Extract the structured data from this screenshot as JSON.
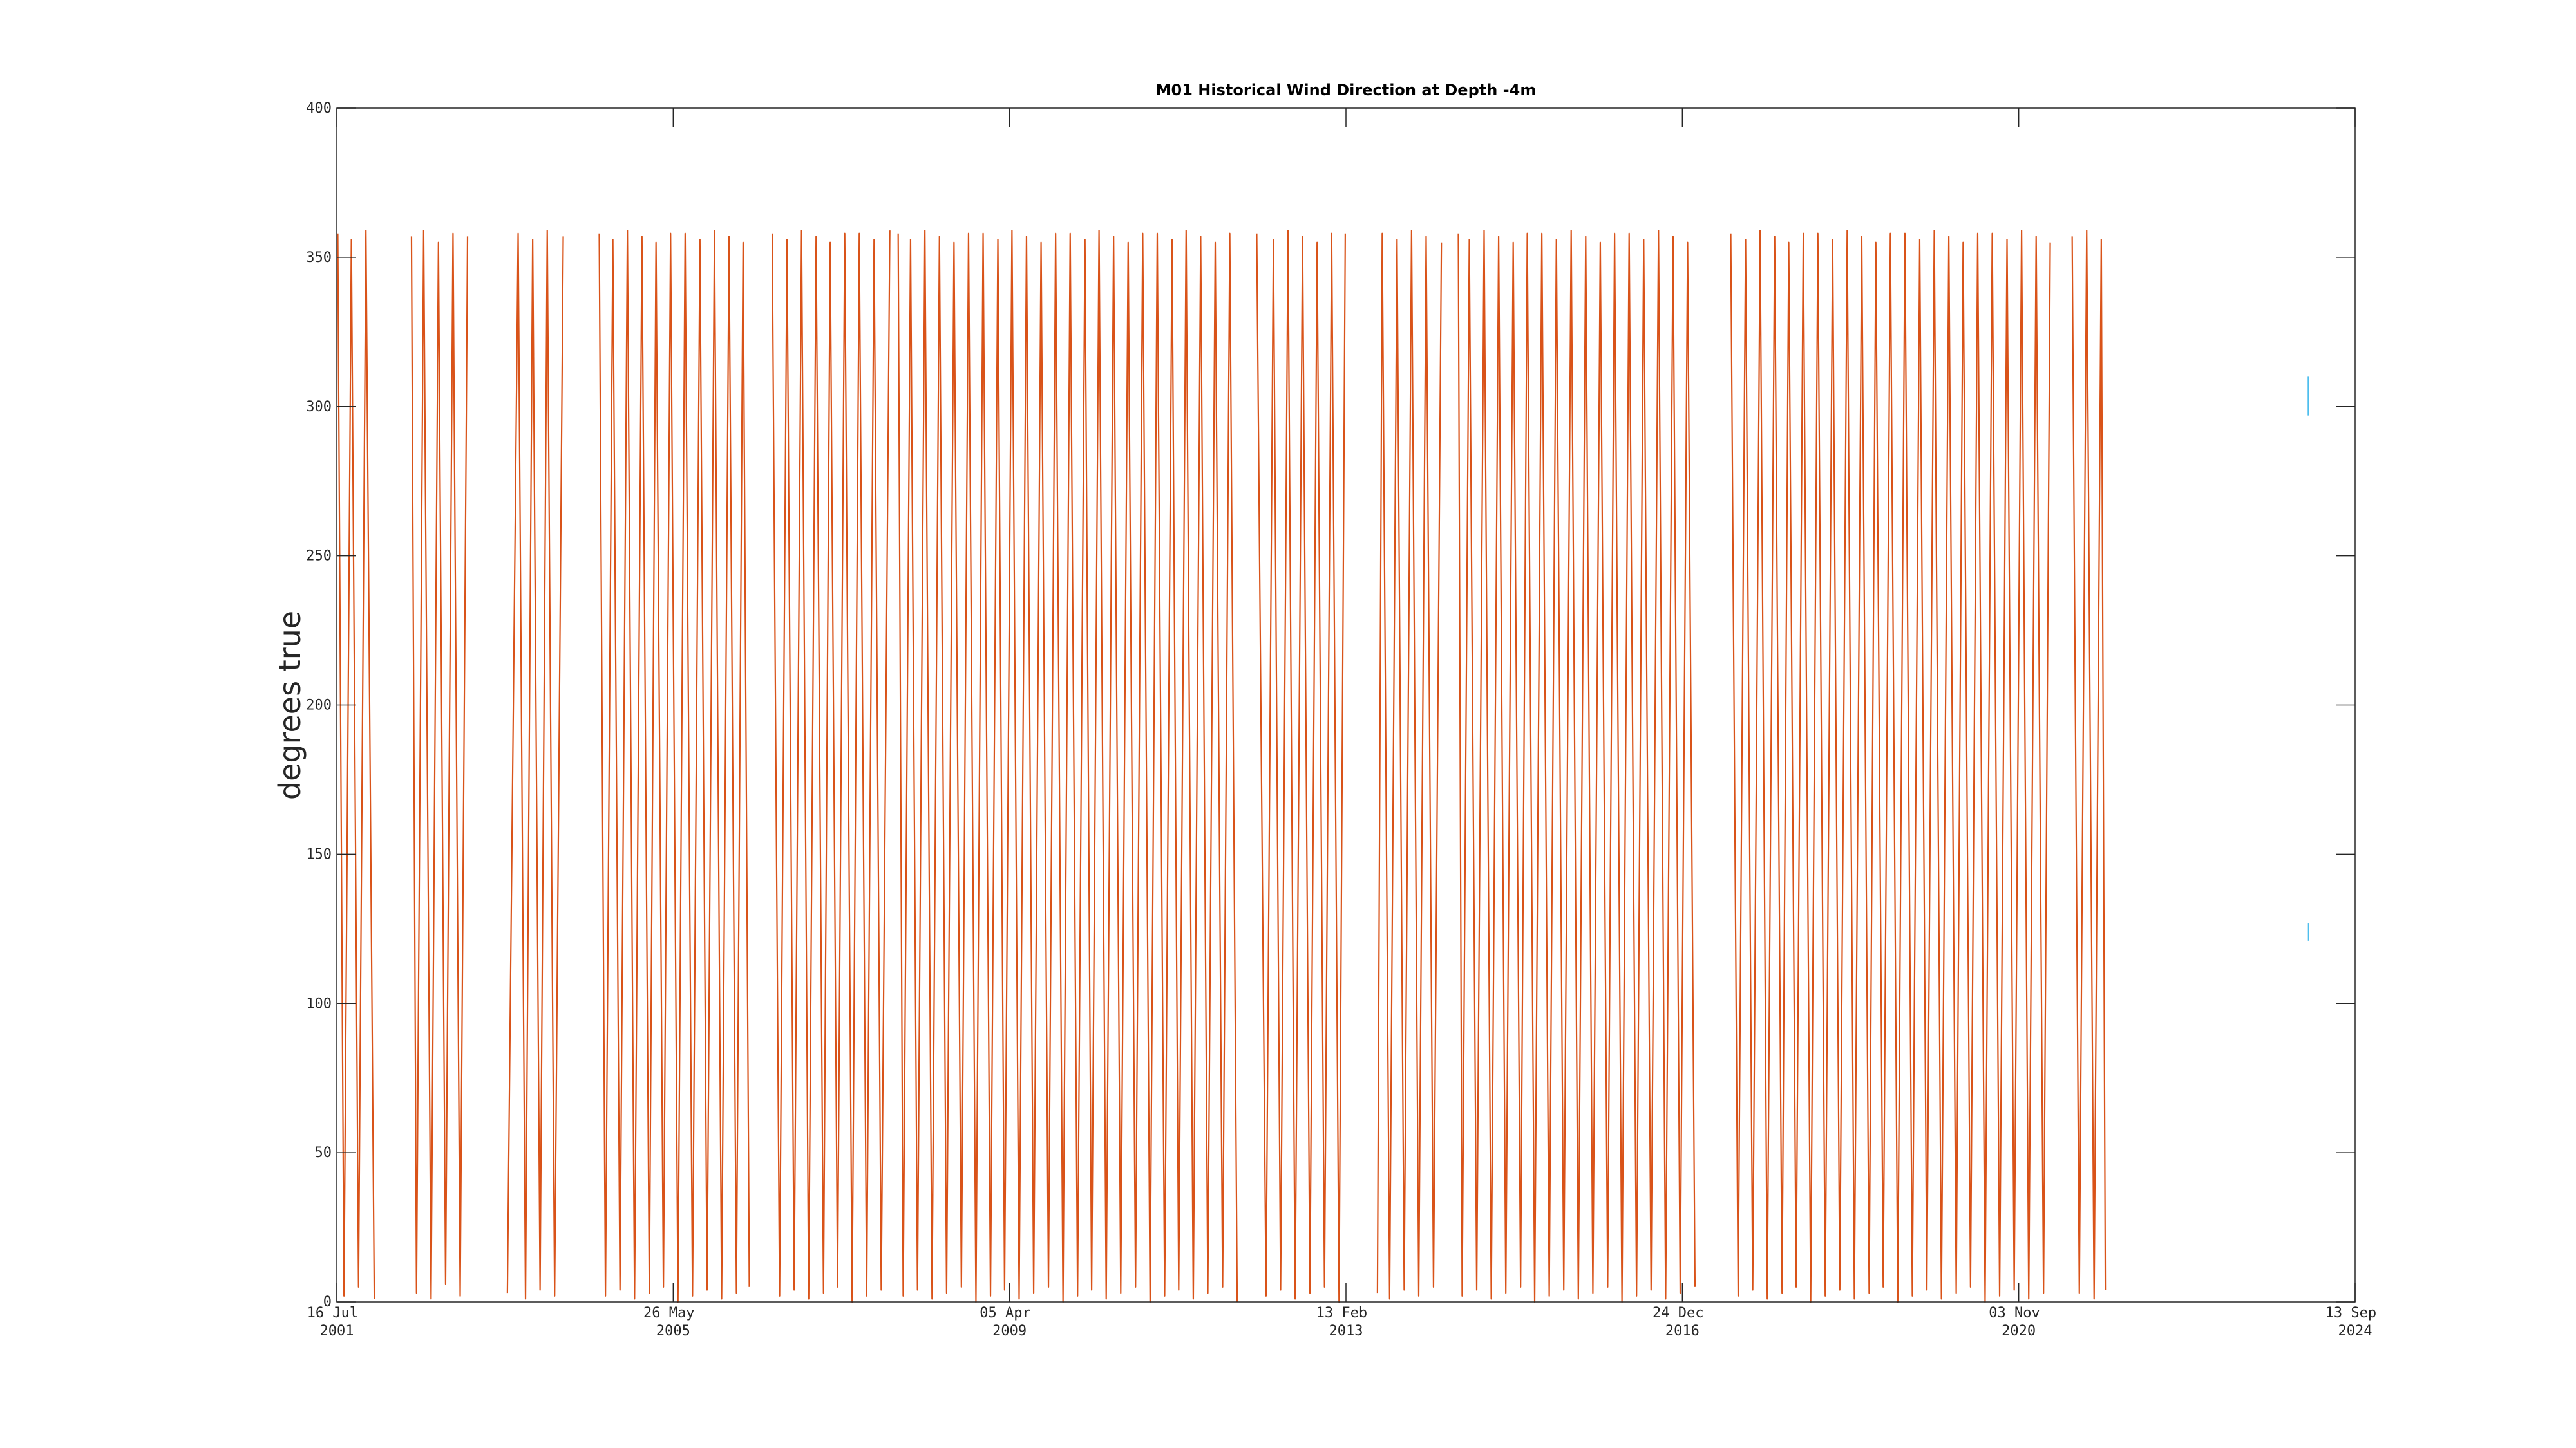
{
  "chart_data": {
    "type": "line",
    "title": "M01 Historical Wind Direction at Depth -4m",
    "y_label": "degrees true",
    "xlim": [
      "2001-07-16",
      "2024-09-13"
    ],
    "xticks": [
      {
        "value": "2001-07-16",
        "label": "16 Jul 2001"
      },
      {
        "value": "2005-05-26",
        "label": "26 May 2005"
      },
      {
        "value": "2009-04-05",
        "label": "05 Apr 2009"
      },
      {
        "value": "2013-02-13",
        "label": "13 Feb 2013"
      },
      {
        "value": "2016-12-24",
        "label": "24 Dec 2016"
      },
      {
        "value": "2020-11-03",
        "label": "03 Nov 2020"
      },
      {
        "value": "2024-09-13",
        "label": "13 Sep 2024"
      }
    ],
    "ylim": [
      0,
      400
    ],
    "yticks": [
      0,
      50,
      100,
      150,
      200,
      250,
      300,
      350,
      400
    ],
    "grid": false,
    "series": [
      {
        "color": "#d95319",
        "x": [
          "2001-07-20",
          "2001-08-15",
          "2001-09-15",
          "2001-10-15",
          "2001-11-15",
          "2001-12-20",
          "2002-03-01",
          "2002-05-25",
          "2002-06-15",
          "2002-07-15",
          "2002-08-15",
          "2002-09-15",
          "2002-10-15",
          "2002-11-15",
          "2002-12-15",
          "2003-01-15",
          "2003-04-01",
          "2003-07-01",
          "2003-08-15",
          "2003-09-15",
          "2003-10-15",
          "2003-11-15",
          "2003-12-15",
          "2004-01-15",
          "2004-02-20",
          "2004-05-01",
          "2004-07-20",
          "2004-08-15",
          "2004-09-15",
          "2004-10-15",
          "2004-11-15",
          "2004-12-15",
          "2005-01-15",
          "2005-02-15",
          "2005-03-15",
          "2005-04-15",
          "2005-05-15",
          "2005-06-15",
          "2005-07-15",
          "2005-08-15",
          "2005-09-15",
          "2005-10-15",
          "2005-11-15",
          "2005-12-15",
          "2006-01-15",
          "2006-02-15",
          "2006-03-15",
          "2006-04-10",
          "2006-05-15",
          "2006-07-15",
          "2006-08-15",
          "2006-09-15",
          "2006-10-15",
          "2006-11-15",
          "2006-12-15",
          "2007-01-15",
          "2007-02-15",
          "2007-03-15",
          "2007-04-15",
          "2007-05-15",
          "2007-06-15",
          "2007-07-15",
          "2007-08-15",
          "2007-09-15",
          "2007-10-15",
          "2007-11-20",
          "2007-12-10",
          "2007-12-25",
          "2008-01-15",
          "2008-02-15",
          "2008-03-15",
          "2008-04-15",
          "2008-05-15",
          "2008-06-15",
          "2008-07-15",
          "2008-08-15",
          "2008-09-15",
          "2008-10-15",
          "2008-11-15",
          "2008-12-15",
          "2009-01-15",
          "2009-02-15",
          "2009-03-15",
          "2009-04-15",
          "2009-05-15",
          "2009-06-15",
          "2009-07-15",
          "2009-08-15",
          "2009-09-15",
          "2009-10-15",
          "2009-11-15",
          "2009-12-15",
          "2010-01-15",
          "2010-02-15",
          "2010-03-15",
          "2010-04-15",
          "2010-05-15",
          "2010-06-15",
          "2010-07-15",
          "2010-08-15",
          "2010-09-15",
          "2010-10-15",
          "2010-11-15",
          "2010-12-15",
          "2011-01-15",
          "2011-02-15",
          "2011-03-15",
          "2011-04-15",
          "2011-05-15",
          "2011-06-15",
          "2011-07-15",
          "2011-08-15",
          "2011-09-15",
          "2011-10-15",
          "2011-11-15",
          "2012-01-01",
          "2012-02-05",
          "2012-03-15",
          "2012-04-15",
          "2012-05-15",
          "2012-06-15",
          "2012-07-15",
          "2012-08-15",
          "2012-09-15",
          "2012-10-15",
          "2012-11-15",
          "2012-12-15",
          "2013-01-15",
          "2013-02-10",
          "2013-04-01",
          "2013-06-25",
          "2013-07-15",
          "2013-08-15",
          "2013-09-15",
          "2013-10-15",
          "2013-11-15",
          "2013-12-15",
          "2014-01-15",
          "2014-02-15",
          "2014-03-20",
          "2014-04-20",
          "2014-05-30",
          "2014-06-15",
          "2014-07-15",
          "2014-08-15",
          "2014-09-15",
          "2014-10-15",
          "2014-11-15",
          "2014-12-15",
          "2015-01-15",
          "2015-02-15",
          "2015-03-15",
          "2015-04-15",
          "2015-05-15",
          "2015-06-15",
          "2015-07-15",
          "2015-08-15",
          "2015-09-15",
          "2015-10-15",
          "2015-11-15",
          "2015-12-15",
          "2016-01-15",
          "2016-02-15",
          "2016-03-15",
          "2016-04-15",
          "2016-05-15",
          "2016-06-15",
          "2016-07-15",
          "2016-08-15",
          "2016-09-15",
          "2016-10-15",
          "2016-11-15",
          "2016-12-15",
          "2017-01-15",
          "2017-02-15",
          "2017-04-15",
          "2017-07-15",
          "2017-08-15",
          "2017-09-15",
          "2017-10-15",
          "2017-11-15",
          "2017-12-15",
          "2018-01-15",
          "2018-02-15",
          "2018-03-15",
          "2018-04-15",
          "2018-05-15",
          "2018-06-15",
          "2018-07-15",
          "2018-08-15",
          "2018-09-15",
          "2018-10-15",
          "2018-11-15",
          "2018-12-15",
          "2019-01-15",
          "2019-02-15",
          "2019-03-15",
          "2019-04-15",
          "2019-05-15",
          "2019-06-15",
          "2019-07-15",
          "2019-08-15",
          "2019-09-15",
          "2019-10-15",
          "2019-11-15",
          "2019-12-15",
          "2020-01-15",
          "2020-02-15",
          "2020-03-15",
          "2020-04-15",
          "2020-05-15",
          "2020-06-15",
          "2020-07-15",
          "2020-08-15",
          "2020-09-15",
          "2020-10-15",
          "2020-11-15",
          "2020-12-15",
          "2021-01-15",
          "2021-02-15",
          "2021-03-15",
          "2021-04-15",
          "2021-06-15",
          "2021-07-15",
          "2021-08-15",
          "2021-09-15",
          "2021-10-15",
          "2021-11-01"
        ],
        "values": [
          358,
          2,
          356,
          5,
          359,
          1,
          null,
          357,
          3,
          359,
          1,
          355,
          6,
          358,
          2,
          357,
          null,
          3,
          358,
          1,
          356,
          4,
          359,
          2,
          357,
          null,
          358,
          2,
          356,
          4,
          359,
          1,
          357,
          3,
          355,
          5,
          358,
          0,
          358,
          2,
          356,
          4,
          359,
          1,
          357,
          3,
          355,
          5,
          null,
          358,
          2,
          356,
          4,
          359,
          1,
          357,
          3,
          355,
          5,
          358,
          0,
          358,
          2,
          356,
          4,
          359,
          null,
          358,
          2,
          356,
          4,
          359,
          1,
          357,
          3,
          355,
          5,
          358,
          0,
          358,
          2,
          356,
          4,
          359,
          1,
          357,
          3,
          355,
          5,
          358,
          0,
          358,
          2,
          356,
          4,
          359,
          1,
          357,
          3,
          355,
          5,
          358,
          0,
          358,
          2,
          356,
          4,
          359,
          1,
          357,
          3,
          355,
          5,
          358,
          0,
          null,
          358,
          2,
          356,
          4,
          359,
          1,
          357,
          3,
          355,
          5,
          358,
          0,
          358,
          null,
          3,
          358,
          1,
          356,
          4,
          359,
          2,
          357,
          5,
          355,
          null,
          358,
          2,
          356,
          4,
          359,
          1,
          357,
          3,
          355,
          5,
          358,
          0,
          358,
          2,
          356,
          4,
          359,
          1,
          357,
          3,
          355,
          5,
          358,
          0,
          358,
          2,
          356,
          4,
          359,
          1,
          357,
          3,
          355,
          5,
          null,
          358,
          2,
          356,
          4,
          359,
          1,
          357,
          3,
          355,
          5,
          358,
          0,
          358,
          2,
          356,
          4,
          359,
          1,
          357,
          3,
          355,
          5,
          358,
          0,
          358,
          2,
          356,
          4,
          359,
          1,
          357,
          3,
          355,
          5,
          358,
          0,
          358,
          2,
          356,
          4,
          359,
          1,
          357,
          3,
          355,
          null,
          357,
          3,
          359,
          1,
          356,
          4
        ]
      },
      {
        "color": "#4dbeee",
        "x": [
          "2024-03-01",
          "2024-03-01",
          "2024-03-02",
          "2024-03-02",
          "2024-03-02",
          "2024-03-10"
        ],
        "values": [
          297,
          310,
          null,
          121,
          127,
          null
        ]
      }
    ]
  }
}
